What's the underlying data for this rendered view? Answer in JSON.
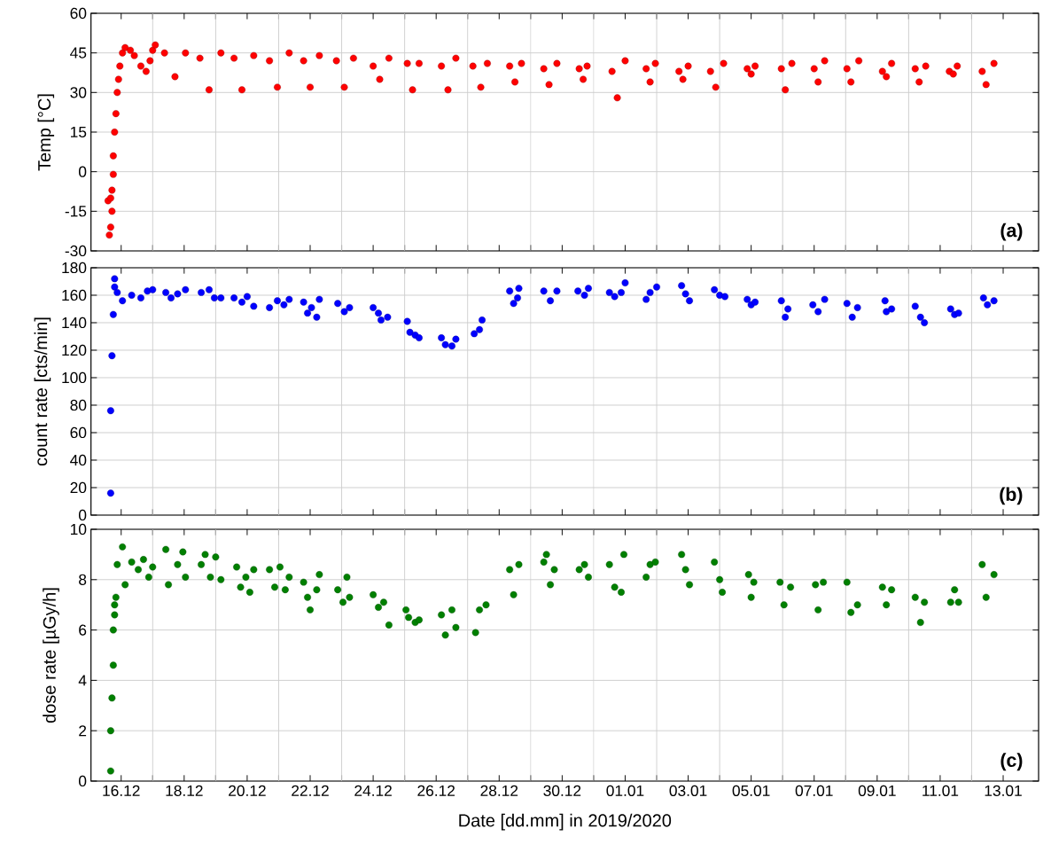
{
  "chart_data": [
    {
      "type": "scatter",
      "ylabel": "Temp [°C]",
      "annotations": [
        "(a)"
      ],
      "color": "#ff0000",
      "marker": "circle",
      "grid": true,
      "tick_labels": "y",
      "xlim": [
        "2019-12-15T01:00",
        "2020-01-14T03:00"
      ],
      "ylim": [
        -30,
        60
      ],
      "yticks": [
        -30,
        -15,
        0,
        15,
        30,
        45,
        60
      ],
      "xticks": [
        "2019-12-16",
        {
          "value": "2019-12-17",
          "label": null
        },
        "2019-12-18",
        {
          "value": "2019-12-19",
          "label": null
        },
        "2019-12-20",
        {
          "value": "2019-12-21",
          "label": null
        },
        "2019-12-22",
        {
          "value": "2019-12-23",
          "label": null
        },
        "2019-12-24",
        {
          "value": "2019-12-25",
          "label": null
        },
        "2019-12-26",
        {
          "value": "2019-12-27",
          "label": null
        },
        "2019-12-28",
        {
          "value": "2019-12-29",
          "label": null
        },
        "2019-12-30",
        {
          "value": "2019-12-31",
          "label": null
        },
        "2020-01-01",
        {
          "value": "2020-01-02",
          "label": null
        },
        "2020-01-03",
        {
          "value": "2020-01-04",
          "label": null
        },
        "2020-01-05",
        {
          "value": "2020-01-06",
          "label": null
        },
        "2020-01-07",
        {
          "value": "2020-01-08",
          "label": null
        },
        "2020-01-09",
        {
          "value": "2020-01-10",
          "label": null
        },
        "2020-01-11",
        {
          "value": "2020-01-12",
          "label": null
        },
        "2020-01-13"
      ],
      "x": [
        "2019-12-15T15:00",
        "2019-12-15T16:00",
        "2019-12-15T17:00",
        "2019-12-15T14:00",
        "2019-12-15T16:00",
        "2019-12-15T17:00",
        "2019-12-15T18:00",
        "2019-12-15T18:00",
        "2019-12-15T19:00",
        "2019-12-15T20:00",
        "2019-12-15T21:00",
        "2019-12-15T22:00",
        "2019-12-15T23:00",
        "2019-12-16T01:00",
        "2019-12-16T03:00",
        "2019-12-16T07:00",
        "2019-12-16T10:00",
        "2019-12-16T15:00",
        "2019-12-16T19:00",
        "2019-12-16T22:00",
        "2019-12-17T00:00",
        "2019-12-17T02:00",
        "2019-12-17T09:00",
        "2019-12-17T17:00",
        "2019-12-18T01:00",
        "2019-12-18T12:00",
        "2019-12-18T19:00",
        "2019-12-19T04:00",
        "2019-12-19T14:00",
        "2019-12-19T20:00",
        "2019-12-20T05:00",
        "2019-12-20T17:00",
        "2019-12-20T23:00",
        "2019-12-21T08:00",
        "2019-12-21T19:00",
        "2019-12-22T00:00",
        "2019-12-22T07:00",
        "2019-12-22T20:00",
        "2019-12-23T02:00",
        "2019-12-23T09:00",
        "2019-12-24T00:00",
        "2019-12-24T05:00",
        "2019-12-24T12:00",
        "2019-12-25T02:00",
        "2019-12-25T06:00",
        "2019-12-25T11:00",
        "2019-12-26T04:00",
        "2019-12-26T09:00",
        "2019-12-26T15:00",
        "2019-12-27T04:00",
        "2019-12-27T10:00",
        "2019-12-27T15:00",
        "2019-12-28T08:00",
        "2019-12-28T12:00",
        "2019-12-28T17:00",
        "2019-12-29T10:00",
        "2019-12-29T14:00",
        "2019-12-29T20:00",
        "2019-12-30T13:00",
        "2019-12-30T16:00",
        "2019-12-30T19:00",
        "2019-12-31T14:00",
        "2019-12-31T18:00",
        "2020-01-01T00:00",
        "2020-01-01T16:00",
        "2020-01-01T19:00",
        "2020-01-01T23:00",
        "2020-01-02T17:00",
        "2020-01-02T20:00",
        "2020-01-03T00:00",
        "2020-01-03T17:00",
        "2020-01-03T21:00",
        "2020-01-04T03:00",
        "2020-01-04T21:00",
        "2020-01-05T00:00",
        "2020-01-05T03:00",
        "2020-01-05T23:00",
        "2020-01-06T02:00",
        "2020-01-06T07:00",
        "2020-01-07T00:00",
        "2020-01-07T03:00",
        "2020-01-07T08:00",
        "2020-01-08T01:00",
        "2020-01-08T04:00",
        "2020-01-08T10:00",
        "2020-01-09T04:00",
        "2020-01-09T07:00",
        "2020-01-09T11:00",
        "2020-01-10T05:00",
        "2020-01-10T08:00",
        "2020-01-10T13:00",
        "2020-01-11T07:00",
        "2020-01-11T10:00",
        "2020-01-11T13:00",
        "2020-01-12T08:00",
        "2020-01-12T11:00",
        "2020-01-12T17:00"
      ],
      "values": [
        -24,
        -21,
        -15,
        -11,
        -10,
        -7,
        -1,
        6,
        15,
        22,
        30,
        35,
        40,
        45,
        47,
        46,
        44,
        40,
        38,
        42,
        46,
        48,
        45,
        36,
        45,
        43,
        31,
        45,
        43,
        31,
        44,
        42,
        32,
        45,
        42,
        32,
        44,
        42,
        32,
        43,
        40,
        35,
        43,
        41,
        31,
        41,
        40,
        31,
        43,
        40,
        32,
        41,
        40,
        34,
        41,
        39,
        33,
        41,
        39,
        35,
        40,
        38,
        28,
        42,
        39,
        34,
        41,
        38,
        35,
        40,
        38,
        32,
        41,
        39,
        37,
        40,
        39,
        31,
        41,
        39,
        34,
        42,
        39,
        34,
        42,
        38,
        36,
        41,
        39,
        34,
        40,
        38,
        37,
        40,
        38,
        33,
        41
      ]
    },
    {
      "type": "scatter",
      "ylabel": "count rate [cts/min]",
      "annotations": [
        "(b)"
      ],
      "color": "#0000ff",
      "marker": "circle",
      "grid": true,
      "tick_labels": "y",
      "xlim": [
        "2019-12-15T01:00",
        "2020-01-14T03:00"
      ],
      "ylim": [
        0,
        180
      ],
      "yticks": [
        0,
        20,
        40,
        60,
        80,
        100,
        120,
        140,
        160,
        180
      ],
      "xticks": [
        "2019-12-16",
        {
          "value": "2019-12-17",
          "label": null
        },
        "2019-12-18",
        {
          "value": "2019-12-19",
          "label": null
        },
        "2019-12-20",
        {
          "value": "2019-12-21",
          "label": null
        },
        "2019-12-22",
        {
          "value": "2019-12-23",
          "label": null
        },
        "2019-12-24",
        {
          "value": "2019-12-25",
          "label": null
        },
        "2019-12-26",
        {
          "value": "2019-12-27",
          "label": null
        },
        "2019-12-28",
        {
          "value": "2019-12-29",
          "label": null
        },
        "2019-12-30",
        {
          "value": "2019-12-31",
          "label": null
        },
        "2020-01-01",
        {
          "value": "2020-01-02",
          "label": null
        },
        "2020-01-03",
        {
          "value": "2020-01-04",
          "label": null
        },
        "2020-01-05",
        {
          "value": "2020-01-06",
          "label": null
        },
        "2020-01-07",
        {
          "value": "2020-01-08",
          "label": null
        },
        "2020-01-09",
        {
          "value": "2020-01-10",
          "label": null
        },
        "2020-01-11",
        {
          "value": "2020-01-12",
          "label": null
        },
        "2020-01-13"
      ],
      "x": [
        "2019-12-15T16:00",
        "2019-12-15T16:00",
        "2019-12-15T17:00",
        "2019-12-15T18:00",
        "2019-12-15T19:00",
        "2019-12-15T19:00",
        "2019-12-15T21:00",
        "2019-12-16T01:00",
        "2019-12-16T08:00",
        "2019-12-16T15:00",
        "2019-12-16T20:00",
        "2019-12-17T00:00",
        "2019-12-17T10:00",
        "2019-12-17T14:00",
        "2019-12-17T19:00",
        "2019-12-18T01:00",
        "2019-12-18T13:00",
        "2019-12-18T19:00",
        "2019-12-18T23:00",
        "2019-12-19T04:00",
        "2019-12-19T14:00",
        "2019-12-19T20:00",
        "2019-12-20T00:00",
        "2019-12-20T05:00",
        "2019-12-20T17:00",
        "2019-12-20T23:00",
        "2019-12-21T04:00",
        "2019-12-21T08:00",
        "2019-12-21T19:00",
        "2019-12-21T22:00",
        "2019-12-22T01:00",
        "2019-12-22T05:00",
        "2019-12-22T07:00",
        "2019-12-22T21:00",
        "2019-12-23T02:00",
        "2019-12-23T06:00",
        "2019-12-24T00:00",
        "2019-12-24T04:00",
        "2019-12-24T06:00",
        "2019-12-24T11:00",
        "2019-12-25T02:00",
        "2019-12-25T04:00",
        "2019-12-25T08:00",
        "2019-12-25T11:00",
        "2019-12-26T04:00",
        "2019-12-26T07:00",
        "2019-12-26T12:00",
        "2019-12-26T15:00",
        "2019-12-27T05:00",
        "2019-12-27T09:00",
        "2019-12-27T11:00",
        "2019-12-28T08:00",
        "2019-12-28T11:00",
        "2019-12-28T14:00",
        "2019-12-28T15:00",
        "2019-12-29T10:00",
        "2019-12-29T15:00",
        "2019-12-29T20:00",
        "2019-12-30T12:00",
        "2019-12-30T17:00",
        "2019-12-30T20:00",
        "2019-12-31T12:00",
        "2019-12-31T16:00",
        "2019-12-31T21:00",
        "2020-01-01T00:00",
        "2020-01-01T16:00",
        "2020-01-01T19:00",
        "2020-01-02T00:00",
        "2020-01-02T19:00",
        "2020-01-02T22:00",
        "2020-01-03T01:00",
        "2020-01-03T20:00",
        "2020-01-04T00:00",
        "2020-01-04T04:00",
        "2020-01-04T21:00",
        "2020-01-05T00:00",
        "2020-01-05T03:00",
        "2020-01-05T23:00",
        "2020-01-06T02:00",
        "2020-01-06T04:00",
        "2020-01-06T23:00",
        "2020-01-07T03:00",
        "2020-01-07T08:00",
        "2020-01-08T01:00",
        "2020-01-08T05:00",
        "2020-01-08T09:00",
        "2020-01-09T06:00",
        "2020-01-09T07:00",
        "2020-01-09T11:00",
        "2020-01-10T05:00",
        "2020-01-10T09:00",
        "2020-01-10T12:00",
        "2020-01-11T08:00",
        "2020-01-11T11:00",
        "2020-01-11T14:00",
        "2020-01-12T09:00",
        "2020-01-12T12:00",
        "2020-01-12T17:00"
      ],
      "values": [
        16,
        76,
        116,
        146,
        172,
        166,
        162,
        156,
        160,
        158,
        163,
        164,
        162,
        158,
        161,
        164,
        162,
        164,
        158,
        158,
        158,
        155,
        159,
        152,
        151,
        156,
        153,
        157,
        155,
        147,
        151,
        144,
        157,
        154,
        148,
        151,
        151,
        147,
        142,
        144,
        141,
        133,
        131,
        129,
        129,
        124,
        123,
        128,
        132,
        135,
        142,
        163,
        154,
        158,
        165,
        163,
        156,
        163,
        163,
        160,
        165,
        162,
        159,
        162,
        169,
        157,
        162,
        166,
        167,
        161,
        156,
        164,
        160,
        159,
        157,
        153,
        155,
        156,
        144,
        150,
        153,
        148,
        157,
        154,
        144,
        151,
        156,
        148,
        150,
        152,
        144,
        140,
        150,
        146,
        147,
        158,
        153,
        156
      ]
    },
    {
      "type": "scatter",
      "ylabel": "dose rate [µGy/h]",
      "xlabel": "Date [dd.mm] in 2019/2020",
      "annotations": [
        "(c)"
      ],
      "color": "#008000",
      "marker": "circle",
      "grid": true,
      "xlim": [
        "2019-12-15T01:00",
        "2020-01-14T03:00"
      ],
      "ylim": [
        0,
        10
      ],
      "yticks": [
        0,
        2,
        4,
        6,
        8,
        10
      ],
      "xticks": [
        {
          "value": "2019-12-16",
          "label": "16.12"
        },
        {
          "value": "2019-12-17",
          "label": null
        },
        {
          "value": "2019-12-18",
          "label": "18.12"
        },
        {
          "value": "2019-12-19",
          "label": null
        },
        {
          "value": "2019-12-20",
          "label": "20.12"
        },
        {
          "value": "2019-12-21",
          "label": null
        },
        {
          "value": "2019-12-22",
          "label": "22.12"
        },
        {
          "value": "2019-12-23",
          "label": null
        },
        {
          "value": "2019-12-24",
          "label": "24.12"
        },
        {
          "value": "2019-12-25",
          "label": null
        },
        {
          "value": "2019-12-26",
          "label": "26.12"
        },
        {
          "value": "2019-12-27",
          "label": null
        },
        {
          "value": "2019-12-28",
          "label": "28.12"
        },
        {
          "value": "2019-12-29",
          "label": null
        },
        {
          "value": "2019-12-30",
          "label": "30.12"
        },
        {
          "value": "2019-12-31",
          "label": null
        },
        {
          "value": "2020-01-01",
          "label": "01.01"
        },
        {
          "value": "2020-01-02",
          "label": null
        },
        {
          "value": "2020-01-03",
          "label": "03.01"
        },
        {
          "value": "2020-01-04",
          "label": null
        },
        {
          "value": "2020-01-05",
          "label": "05.01"
        },
        {
          "value": "2020-01-06",
          "label": null
        },
        {
          "value": "2020-01-07",
          "label": "07.01"
        },
        {
          "value": "2020-01-08",
          "label": null
        },
        {
          "value": "2020-01-09",
          "label": "09.01"
        },
        {
          "value": "2020-01-10",
          "label": null
        },
        {
          "value": "2020-01-11",
          "label": "11.01"
        },
        {
          "value": "2020-01-12",
          "label": null
        },
        {
          "value": "2020-01-13",
          "label": "13.01"
        }
      ],
      "x": [
        "2019-12-15T16:00",
        "2019-12-15T16:00",
        "2019-12-15T17:00",
        "2019-12-15T18:00",
        "2019-12-15T18:00",
        "2019-12-15T19:00",
        "2019-12-15T19:00",
        "2019-12-15T20:00",
        "2019-12-15T21:00",
        "2019-12-16T01:00",
        "2019-12-16T03:00",
        "2019-12-16T08:00",
        "2019-12-16T13:00",
        "2019-12-16T17:00",
        "2019-12-16T21:00",
        "2019-12-17T00:00",
        "2019-12-17T10:00",
        "2019-12-17T12:00",
        "2019-12-17T19:00",
        "2019-12-17T23:00",
        "2019-12-18T01:00",
        "2019-12-18T13:00",
        "2019-12-18T16:00",
        "2019-12-18T20:00",
        "2019-12-19T00:00",
        "2019-12-19T04:00",
        "2019-12-19T16:00",
        "2019-12-19T19:00",
        "2019-12-19T23:00",
        "2019-12-20T02:00",
        "2019-12-20T05:00",
        "2019-12-20T17:00",
        "2019-12-20T21:00",
        "2019-12-21T01:00",
        "2019-12-21T05:00",
        "2019-12-21T08:00",
        "2019-12-21T19:00",
        "2019-12-21T22:00",
        "2019-12-22T00:00",
        "2019-12-22T05:00",
        "2019-12-22T07:00",
        "2019-12-22T21:00",
        "2019-12-23T01:00",
        "2019-12-23T04:00",
        "2019-12-23T06:00",
        "2019-12-24T00:00",
        "2019-12-24T04:00",
        "2019-12-24T08:00",
        "2019-12-24T12:00",
        "2019-12-25T01:00",
        "2019-12-25T03:00",
        "2019-12-25T08:00",
        "2019-12-25T11:00",
        "2019-12-26T04:00",
        "2019-12-26T07:00",
        "2019-12-26T12:00",
        "2019-12-26T15:00",
        "2019-12-27T06:00",
        "2019-12-27T09:00",
        "2019-12-27T14:00",
        "2019-12-28T08:00",
        "2019-12-28T11:00",
        "2019-12-28T15:00",
        "2019-12-29T10:00",
        "2019-12-29T12:00",
        "2019-12-29T15:00",
        "2019-12-29T18:00",
        "2019-12-30T13:00",
        "2019-12-30T17:00",
        "2019-12-30T20:00",
        "2019-12-31T12:00",
        "2019-12-31T16:00",
        "2019-12-31T21:00",
        "2019-12-31T23:00",
        "2020-01-01T16:00",
        "2020-01-01T19:00",
        "2020-01-01T23:00",
        "2020-01-02T19:00",
        "2020-01-02T22:00",
        "2020-01-03T01:00",
        "2020-01-03T20:00",
        "2020-01-04T00:00",
        "2020-01-04T02:00",
        "2020-01-04T22:00",
        "2020-01-05T00:00",
        "2020-01-05T02:00",
        "2020-01-05T22:00",
        "2020-01-06T01:00",
        "2020-01-06T06:00",
        "2020-01-07T01:00",
        "2020-01-07T03:00",
        "2020-01-07T07:00",
        "2020-01-08T01:00",
        "2020-01-08T04:00",
        "2020-01-08T09:00",
        "2020-01-09T04:00",
        "2020-01-09T07:00",
        "2020-01-09T11:00",
        "2020-01-10T05:00",
        "2020-01-10T09:00",
        "2020-01-10T12:00",
        "2020-01-11T08:00",
        "2020-01-11T11:00",
        "2020-01-11T14:00",
        "2020-01-12T08:00",
        "2020-01-12T11:00",
        "2020-01-12T17:00"
      ],
      "values": [
        0.4,
        2.0,
        3.3,
        4.6,
        6.0,
        6.6,
        7.0,
        7.3,
        8.6,
        9.3,
        7.8,
        8.7,
        8.4,
        8.8,
        8.1,
        8.5,
        9.2,
        7.8,
        8.6,
        9.1,
        8.1,
        8.6,
        9.0,
        8.1,
        8.9,
        8.0,
        8.5,
        7.7,
        8.1,
        7.5,
        8.4,
        8.4,
        7.7,
        8.5,
        7.6,
        8.1,
        7.9,
        7.3,
        6.8,
        7.6,
        8.2,
        7.6,
        7.1,
        8.1,
        7.3,
        7.4,
        6.9,
        7.1,
        6.2,
        6.8,
        6.5,
        6.3,
        6.4,
        6.6,
        5.8,
        6.8,
        6.1,
        5.9,
        6.8,
        7.0,
        8.4,
        7.4,
        8.6,
        8.7,
        9.0,
        7.8,
        8.4,
        8.4,
        8.6,
        8.1,
        8.6,
        7.7,
        7.5,
        9.0,
        8.1,
        8.6,
        8.7,
        9.0,
        8.4,
        7.8,
        8.7,
        8.0,
        7.5,
        8.2,
        7.3,
        7.9,
        7.9,
        7.0,
        7.7,
        7.8,
        6.8,
        7.9,
        7.9,
        6.7,
        7.0,
        7.7,
        7.0,
        7.6,
        7.3,
        6.3,
        7.1,
        7.1,
        7.6,
        7.1,
        8.6,
        7.3,
        8.2
      ]
    }
  ]
}
